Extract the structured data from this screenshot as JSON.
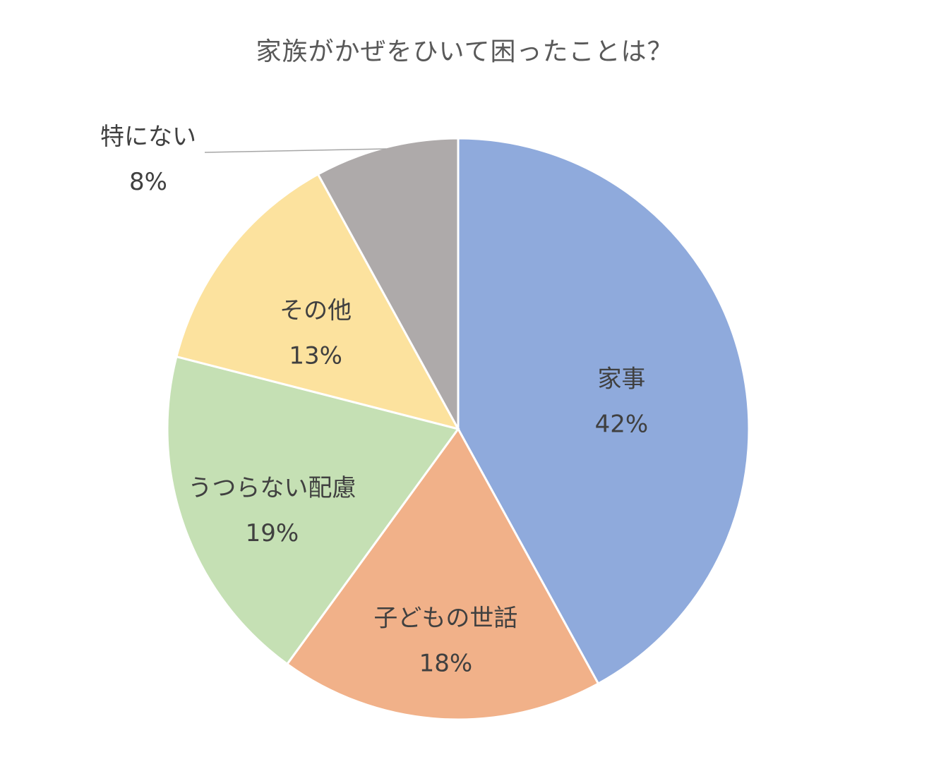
{
  "chart_data": {
    "type": "pie",
    "title": "家族がかぜをひいて困ったことは？",
    "start_angle_deg": 0,
    "direction": "clockwise",
    "slices": [
      {
        "label": "家事",
        "value": 42,
        "value_label": "42%",
        "color": "#8FAADC"
      },
      {
        "label": "子どもの世話",
        "value": 18,
        "value_label": "18%",
        "color": "#F1B189"
      },
      {
        "label": "うつらない配慮",
        "value": 19,
        "value_label": "19%",
        "color": "#C5E0B4"
      },
      {
        "label": "その他",
        "value": 13,
        "value_label": "13%",
        "color": "#FCE29E"
      },
      {
        "label": "特にない",
        "value": 8,
        "value_label": "8%",
        "color": "#AEAAAA",
        "label_outside": true
      }
    ]
  }
}
